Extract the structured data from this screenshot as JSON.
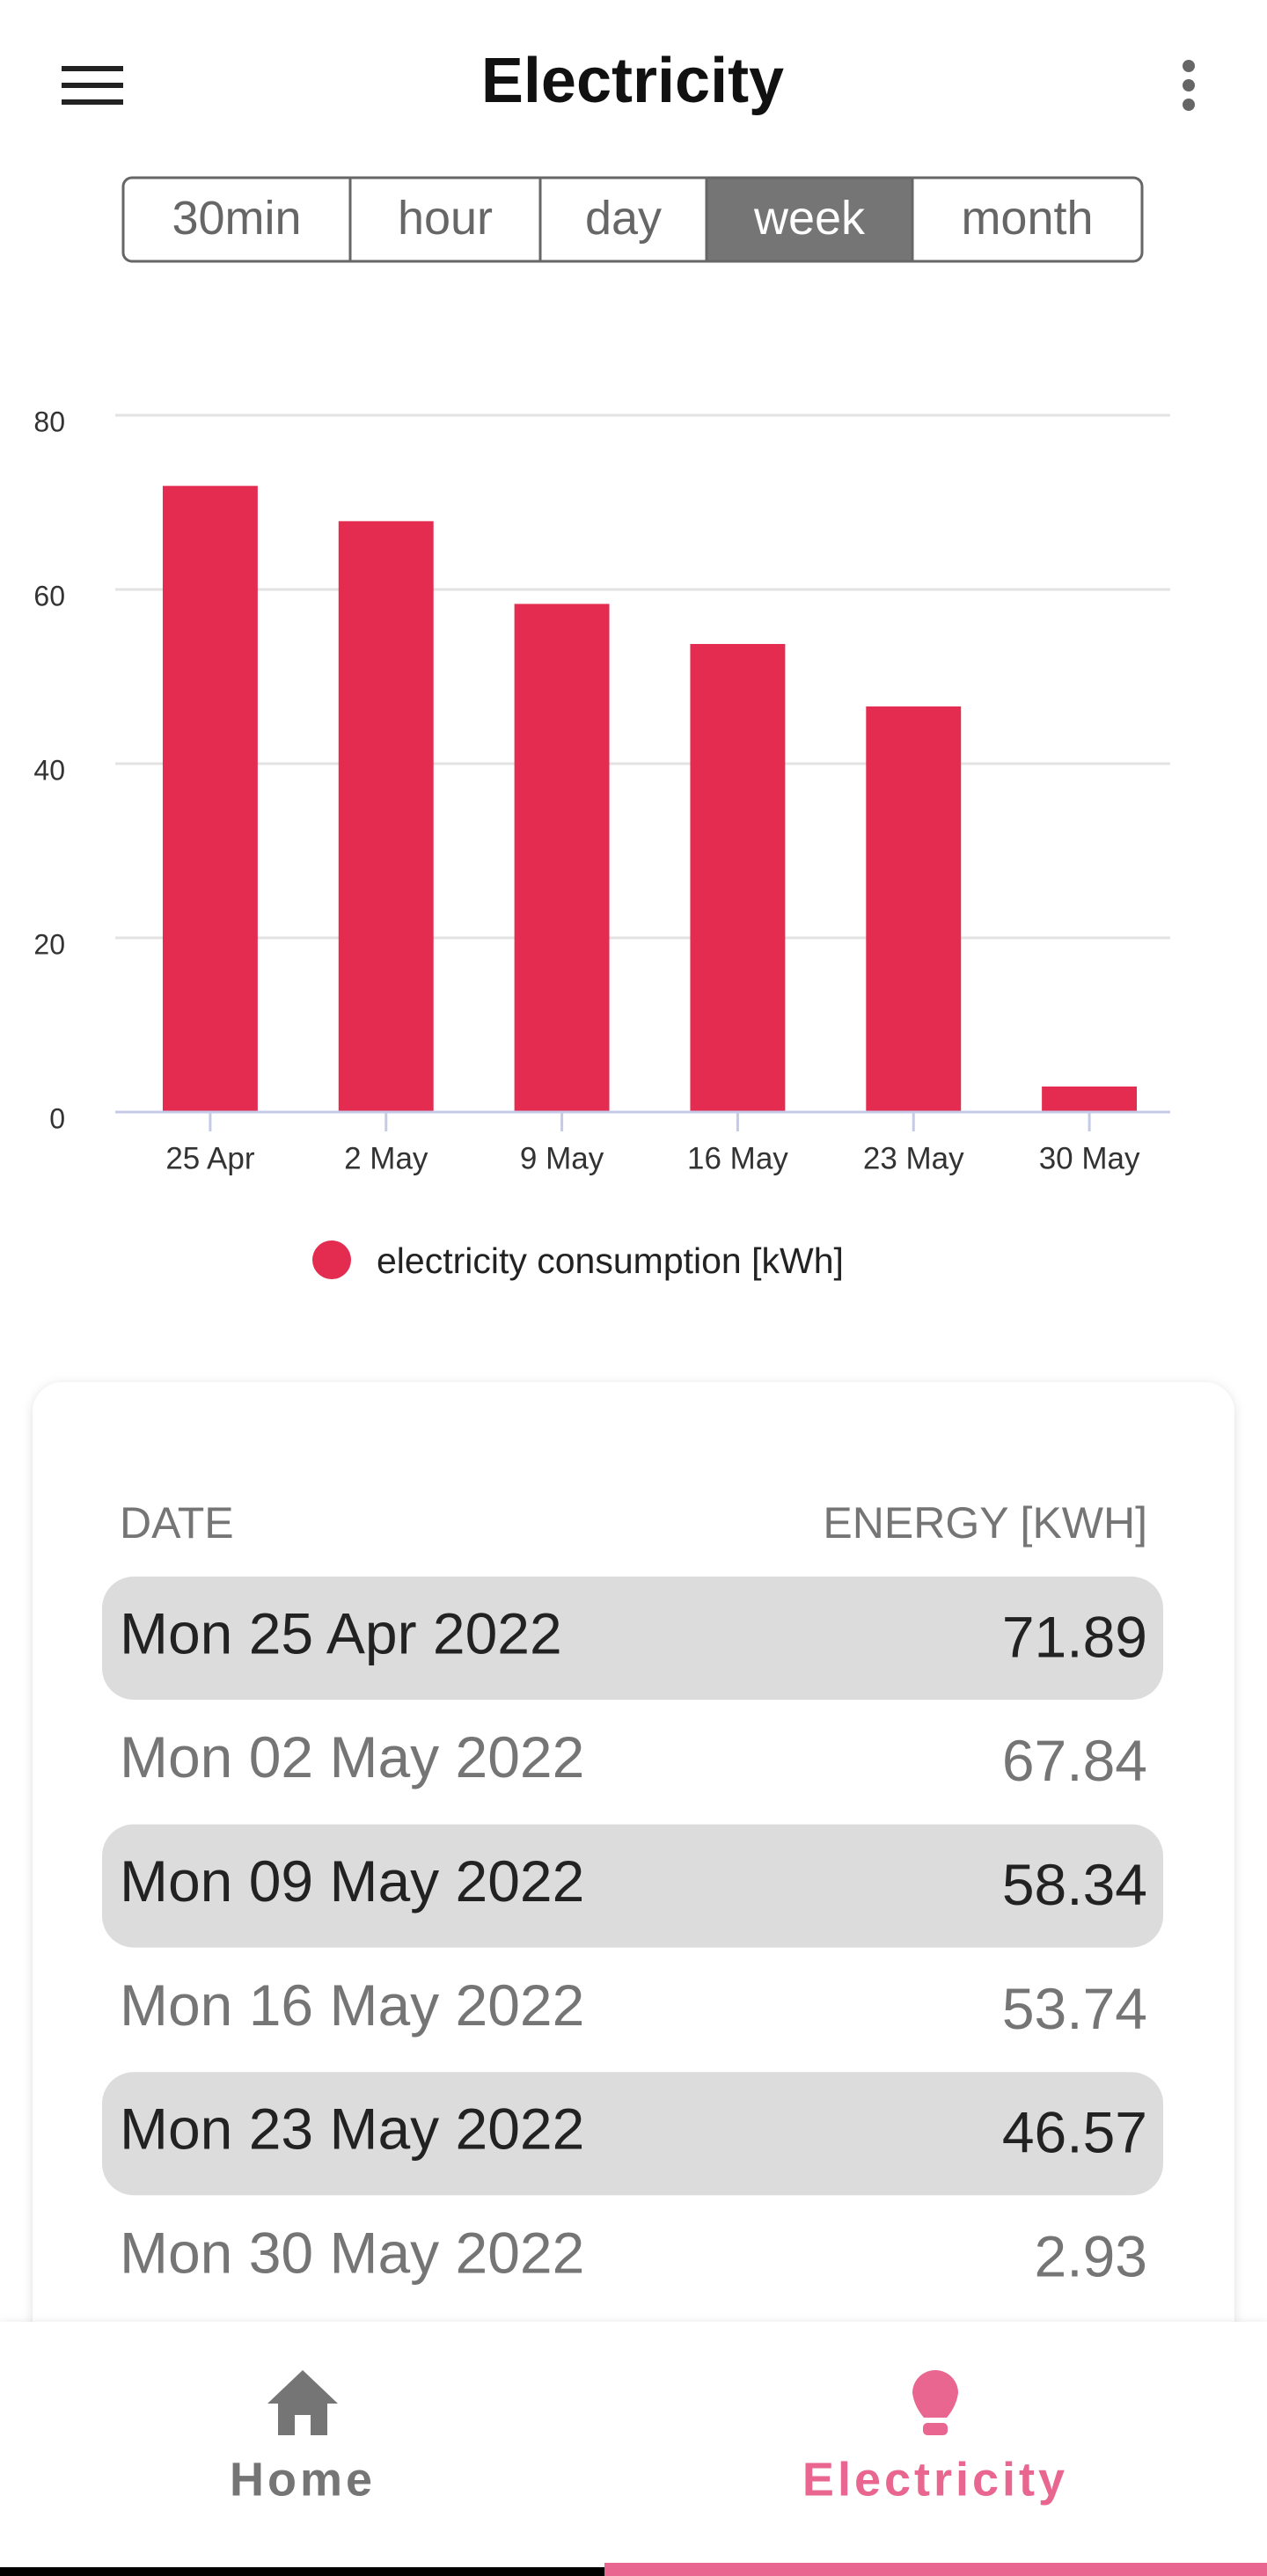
{
  "header": {
    "title": "Electricity"
  },
  "tabs": [
    "30min",
    "hour",
    "day",
    "week",
    "month"
  ],
  "selected_tab": 3,
  "chart_data": {
    "type": "bar",
    "categories": [
      "25 Apr",
      "2 May",
      "9 May",
      "16 May",
      "23 May",
      "30 May"
    ],
    "series": [
      {
        "name": "electricity consumption [kWh]",
        "color": "#e32c50",
        "values": [
          71.89,
          67.84,
          58.34,
          53.74,
          46.57,
          2.93
        ]
      }
    ],
    "ylim": [
      0,
      80
    ],
    "yticks": [
      0,
      20,
      40,
      60,
      80
    ],
    "grid": true,
    "legend": "bottom"
  },
  "table": {
    "headers": [
      "DATE",
      "ENERGY [KWH]"
    ],
    "dates": [
      "Mon 25 Apr 2022",
      "Mon 02 May 2022",
      "Mon 09 May 2022",
      "Mon 16 May 2022",
      "Mon 23 May 2022",
      "Mon 30 May 2022"
    ]
  },
  "nav": {
    "items": [
      "Home",
      "Electricity"
    ],
    "active": 1
  }
}
